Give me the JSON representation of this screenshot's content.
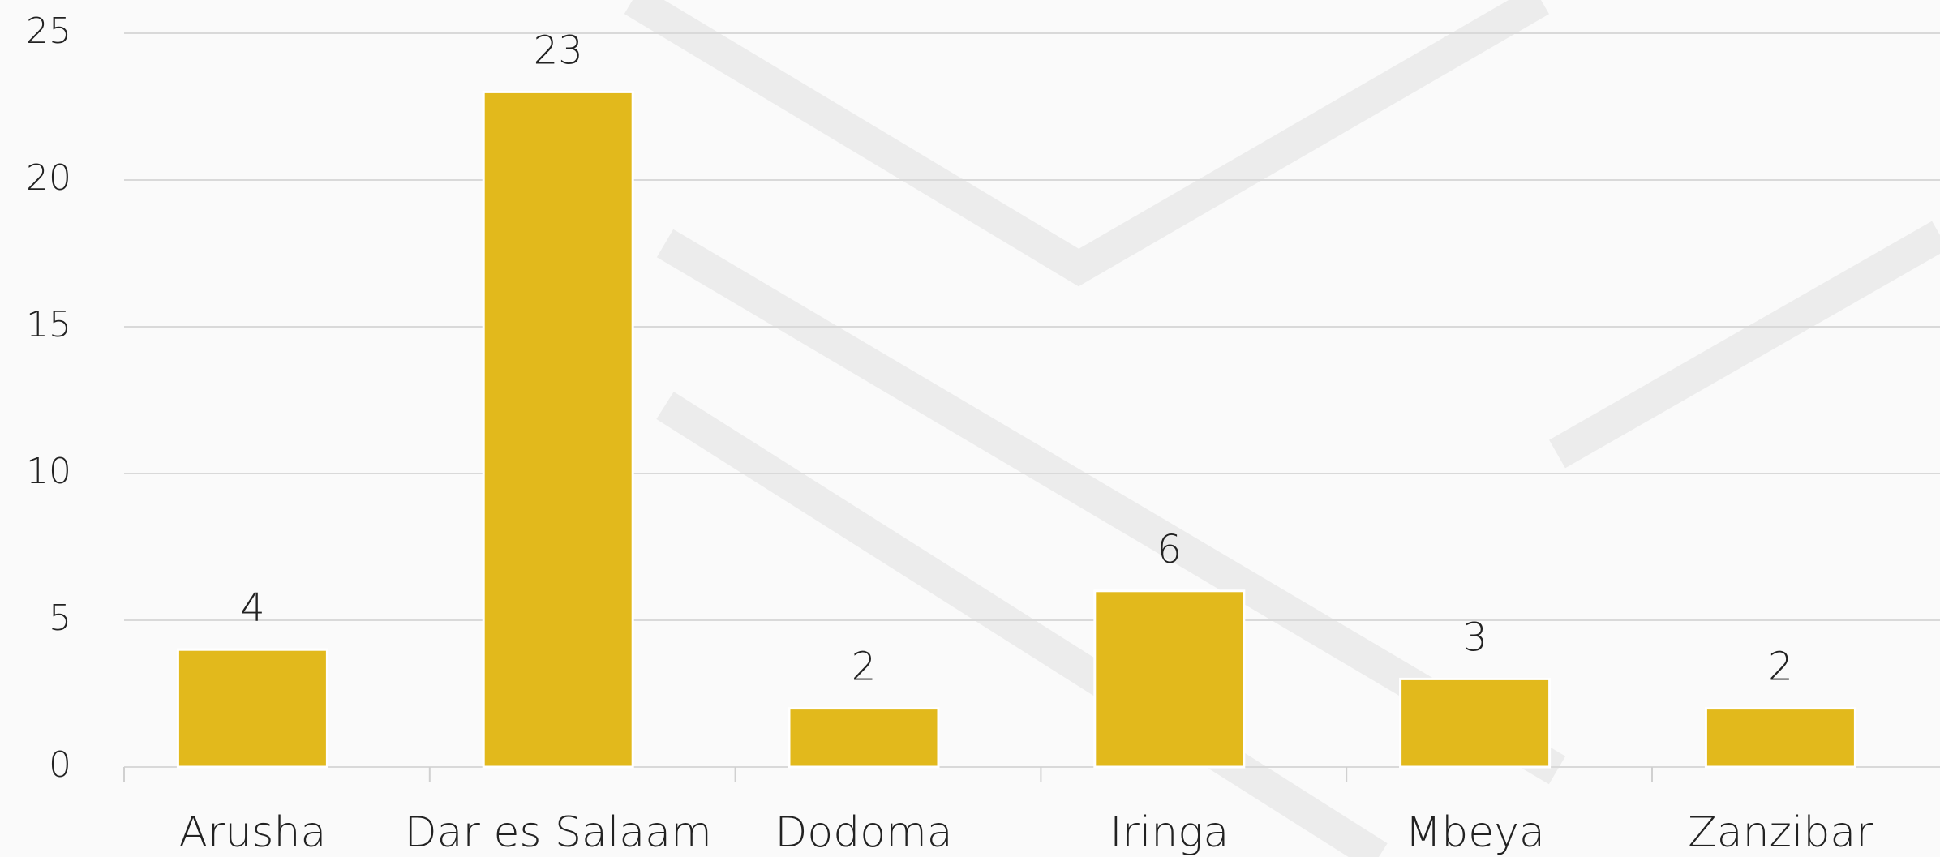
{
  "chart_data": {
    "type": "bar",
    "categories": [
      "Arusha",
      "Dar es Salaam",
      "Dodoma",
      "Iringa",
      "Mbeya",
      "Zanzibar"
    ],
    "values": [
      4,
      23,
      2,
      6,
      3,
      2
    ],
    "color": "#e2b91c",
    "ylim": [
      0,
      25
    ],
    "yticks": [
      0,
      5,
      10,
      15,
      20,
      25
    ],
    "grid": true
  }
}
